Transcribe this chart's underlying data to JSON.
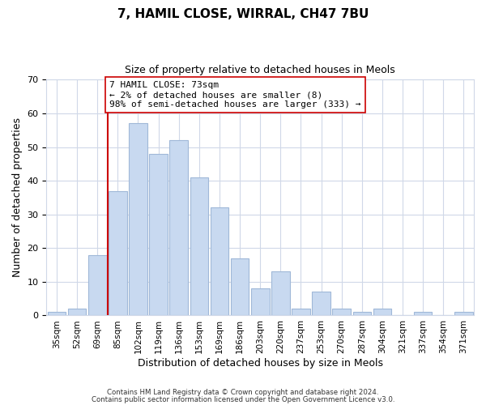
{
  "title": "7, HAMIL CLOSE, WIRRAL, CH47 7BU",
  "subtitle": "Size of property relative to detached houses in Meols",
  "xlabel": "Distribution of detached houses by size in Meols",
  "ylabel": "Number of detached properties",
  "bar_color": "#c8d9f0",
  "bar_edge_color": "#a0b8d8",
  "categories": [
    "35sqm",
    "52sqm",
    "69sqm",
    "85sqm",
    "102sqm",
    "119sqm",
    "136sqm",
    "153sqm",
    "169sqm",
    "186sqm",
    "203sqm",
    "220sqm",
    "237sqm",
    "253sqm",
    "270sqm",
    "287sqm",
    "304sqm",
    "321sqm",
    "337sqm",
    "354sqm",
    "371sqm"
  ],
  "values": [
    1,
    2,
    18,
    37,
    57,
    48,
    52,
    41,
    32,
    17,
    8,
    13,
    2,
    7,
    2,
    1,
    2,
    0,
    1,
    0,
    1
  ],
  "vline_x_index": 2,
  "vline_color": "#cc0000",
  "annotation_text": "7 HAMIL CLOSE: 73sqm\n← 2% of detached houses are smaller (8)\n98% of semi-detached houses are larger (333) →",
  "annotation_box_edge_color": "#cc0000",
  "annotation_box_face_color": "#ffffff",
  "ylim": [
    0,
    70
  ],
  "yticks": [
    0,
    10,
    20,
    30,
    40,
    50,
    60,
    70
  ],
  "footer_line1": "Contains HM Land Registry data © Crown copyright and database right 2024.",
  "footer_line2": "Contains public sector information licensed under the Open Government Licence v3.0.",
  "background_color": "#ffffff",
  "grid_color": "#d0d8e8"
}
